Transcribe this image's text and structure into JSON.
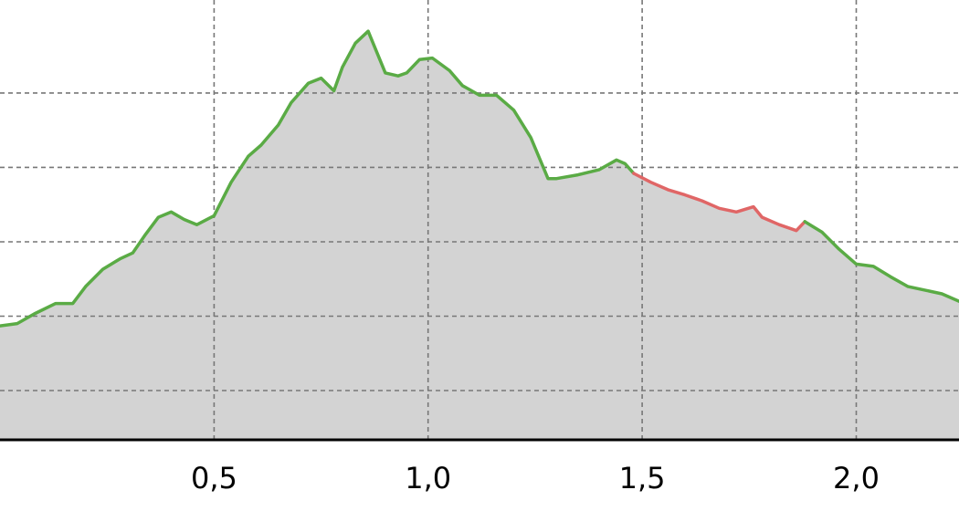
{
  "chart_data": {
    "type": "area",
    "title": "",
    "xlabel": "",
    "ylabel": "",
    "xlim": [
      0.0,
      2.24
    ],
    "ylim": [
      0.0,
      5.9
    ],
    "x_ticks": [
      {
        "value": 0.5,
        "label": "0,5"
      },
      {
        "value": 1.0,
        "label": "1,0"
      },
      {
        "value": 1.5,
        "label": "1,5"
      },
      {
        "value": 2.0,
        "label": "2,0"
      }
    ],
    "y_gridlines": [
      0.65,
      1.65,
      2.65,
      3.65,
      4.65
    ],
    "grid": true,
    "fill_color": "#d3d3d3",
    "axis_color": "#000000",
    "grid_color": "#777777",
    "series": [
      {
        "color": "#5aab45",
        "points": [
          [
            0.0,
            1.52
          ],
          [
            0.04,
            1.55
          ],
          [
            0.08,
            1.68
          ],
          [
            0.13,
            1.82
          ],
          [
            0.17,
            1.82
          ],
          [
            0.2,
            2.05
          ],
          [
            0.24,
            2.28
          ],
          [
            0.28,
            2.42
          ],
          [
            0.31,
            2.5
          ],
          [
            0.34,
            2.75
          ],
          [
            0.37,
            2.98
          ],
          [
            0.4,
            3.05
          ],
          [
            0.43,
            2.95
          ],
          [
            0.46,
            2.88
          ],
          [
            0.5,
            3.0
          ],
          [
            0.54,
            3.45
          ],
          [
            0.58,
            3.8
          ],
          [
            0.61,
            3.95
          ],
          [
            0.65,
            4.22
          ],
          [
            0.68,
            4.52
          ],
          [
            0.72,
            4.78
          ],
          [
            0.75,
            4.85
          ],
          [
            0.78,
            4.68
          ],
          [
            0.8,
            5.0
          ],
          [
            0.83,
            5.32
          ],
          [
            0.86,
            5.48
          ],
          [
            0.88,
            5.2
          ],
          [
            0.9,
            4.92
          ],
          [
            0.93,
            4.88
          ],
          [
            0.95,
            4.92
          ],
          [
            0.98,
            5.1
          ],
          [
            1.01,
            5.12
          ],
          [
            1.05,
            4.95
          ],
          [
            1.08,
            4.75
          ],
          [
            1.12,
            4.62
          ],
          [
            1.16,
            4.62
          ],
          [
            1.2,
            4.42
          ],
          [
            1.24,
            4.05
          ],
          [
            1.28,
            3.5
          ],
          [
            1.3,
            3.5
          ],
          [
            1.35,
            3.55
          ],
          [
            1.4,
            3.62
          ],
          [
            1.44,
            3.75
          ],
          [
            1.46,
            3.7
          ],
          [
            1.48,
            3.57
          ]
        ]
      },
      {
        "color": "#e06666",
        "points": [
          [
            1.48,
            3.57
          ],
          [
            1.52,
            3.45
          ],
          [
            1.56,
            3.35
          ],
          [
            1.6,
            3.28
          ],
          [
            1.64,
            3.2
          ],
          [
            1.68,
            3.1
          ],
          [
            1.72,
            3.05
          ],
          [
            1.76,
            3.12
          ],
          [
            1.78,
            2.98
          ],
          [
            1.82,
            2.88
          ],
          [
            1.86,
            2.8
          ],
          [
            1.88,
            2.92
          ]
        ]
      },
      {
        "color": "#5aab45",
        "points": [
          [
            1.88,
            2.92
          ],
          [
            1.92,
            2.78
          ],
          [
            1.96,
            2.55
          ],
          [
            2.0,
            2.35
          ],
          [
            2.04,
            2.32
          ],
          [
            2.08,
            2.18
          ],
          [
            2.12,
            2.05
          ],
          [
            2.16,
            2.0
          ],
          [
            2.2,
            1.95
          ],
          [
            2.24,
            1.85
          ]
        ]
      }
    ]
  }
}
